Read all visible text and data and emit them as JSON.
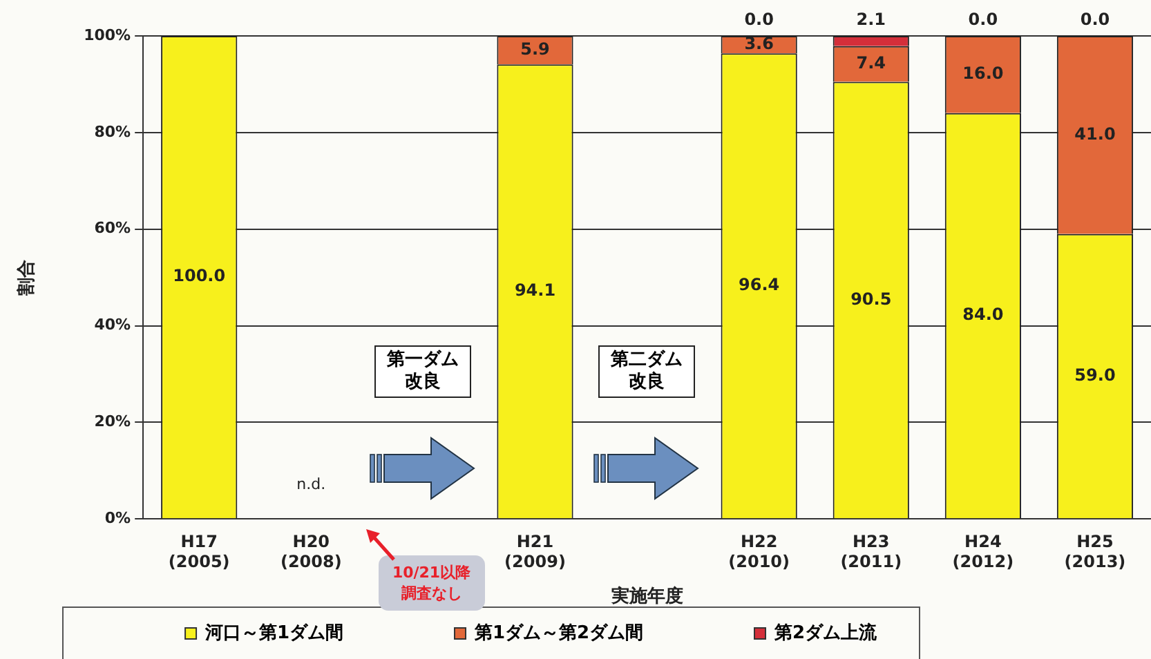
{
  "chart_data": {
    "type": "bar",
    "stacked": true,
    "xlabel": "実施年度",
    "ylabel": "割合",
    "categories": [
      "H17\n(2005)",
      "H20\n(2008)",
      null,
      "H21\n(2009)",
      null,
      "H22\n(2010)",
      "H23\n(2011)",
      "H24\n(2012)",
      "H25\n(2013)"
    ],
    "series": [
      {
        "name": "河口～第1ダム間",
        "color": "#f7f01c",
        "values": [
          100.0,
          null,
          null,
          94.1,
          null,
          96.4,
          90.5,
          84.0,
          59.0
        ],
        "value_labels": [
          "100.0",
          null,
          null,
          "94.1",
          null,
          "96.4",
          "90.5",
          "84.0",
          "59.0"
        ]
      },
      {
        "name": "第1ダム～第2ダム間",
        "color": "#e2683a",
        "values": [
          null,
          null,
          null,
          5.9,
          null,
          3.6,
          7.4,
          16.0,
          41.0
        ],
        "value_labels": [
          null,
          null,
          null,
          "5.9",
          null,
          "3.6",
          "7.4",
          "16.0",
          "41.0"
        ]
      },
      {
        "name": "第2ダム上流",
        "color": "#d42f3a",
        "values": [
          null,
          null,
          null,
          null,
          null,
          0.0,
          2.1,
          0.0,
          0.0
        ],
        "value_labels": [
          null,
          null,
          null,
          null,
          null,
          "0.0",
          "2.1",
          "0.0",
          "0.0"
        ]
      }
    ],
    "ylim": [
      0,
      100
    ],
    "yticks": [
      {
        "value": 0,
        "label": "0%"
      },
      {
        "value": 20,
        "label": "20%"
      },
      {
        "value": 40,
        "label": "40%"
      },
      {
        "value": 60,
        "label": "60%"
      },
      {
        "value": 80,
        "label": "80%"
      },
      {
        "value": 100,
        "label": "100%"
      }
    ],
    "grid": "y",
    "legend": "bottom",
    "annotations": [
      "n.d.",
      "第一ダム改良",
      "第二ダム改良",
      "10/21以降調査なし"
    ]
  }
}
